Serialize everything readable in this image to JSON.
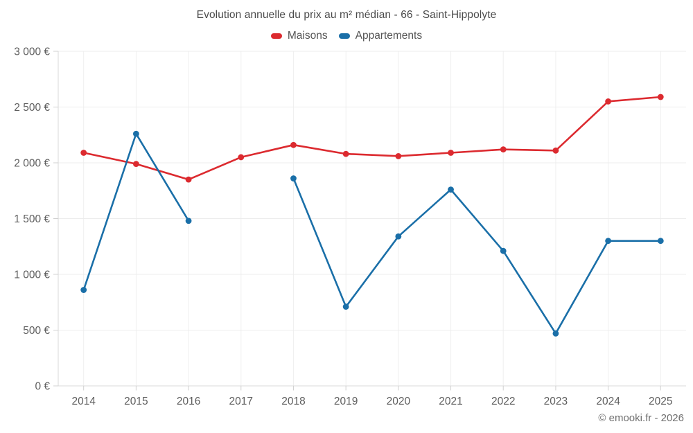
{
  "title": "Evolution annuelle du prix au m² médian - 66 - Saint-Hippolyte",
  "footer": "© emooki.fr - 2026",
  "colors": {
    "maisons": "#dc2a2f",
    "appartements": "#1a6fa8",
    "grid_horizontal": "#ececec",
    "grid_vertical": "#efefef",
    "axis": "#d9d9d9",
    "tick": "#d0d0d0",
    "axis_label": "#5e5e5e",
    "title_text": "#4a4a4a",
    "footer_text": "#6e6e6e"
  },
  "legend": {
    "items": [
      {
        "label": "Maisons",
        "color": "#dc2a2f"
      },
      {
        "label": "Appartements",
        "color": "#1a6fa8"
      }
    ]
  },
  "chart_data": {
    "type": "line",
    "title": "Evolution annuelle du prix au m² médian - 66 - Saint-Hippolyte",
    "categories": [
      "2014",
      "2015",
      "2016",
      "2017",
      "2018",
      "2019",
      "2020",
      "2021",
      "2022",
      "2023",
      "2024",
      "2025"
    ],
    "series": [
      {
        "name": "Maisons",
        "color": "#dc2a2f",
        "values": [
          2090,
          1990,
          1850,
          2050,
          2160,
          2080,
          2060,
          2090,
          2120,
          2110,
          2550,
          2590
        ]
      },
      {
        "name": "Appartements",
        "color": "#1a6fa8",
        "values": [
          860,
          2260,
          1480,
          null,
          1860,
          710,
          1340,
          1760,
          1210,
          470,
          1300,
          1300
        ]
      }
    ],
    "xlabel": "",
    "ylabel": "",
    "ylim": [
      0,
      3000
    ],
    "ytick_step": 500,
    "ytick_labels": [
      "0 €",
      "500 €",
      "1 000 €",
      "1 500 €",
      "2 000 €",
      "2 500 €",
      "3 000 €"
    ],
    "grid": true,
    "legend_position": "top",
    "currency_suffix": " €"
  }
}
